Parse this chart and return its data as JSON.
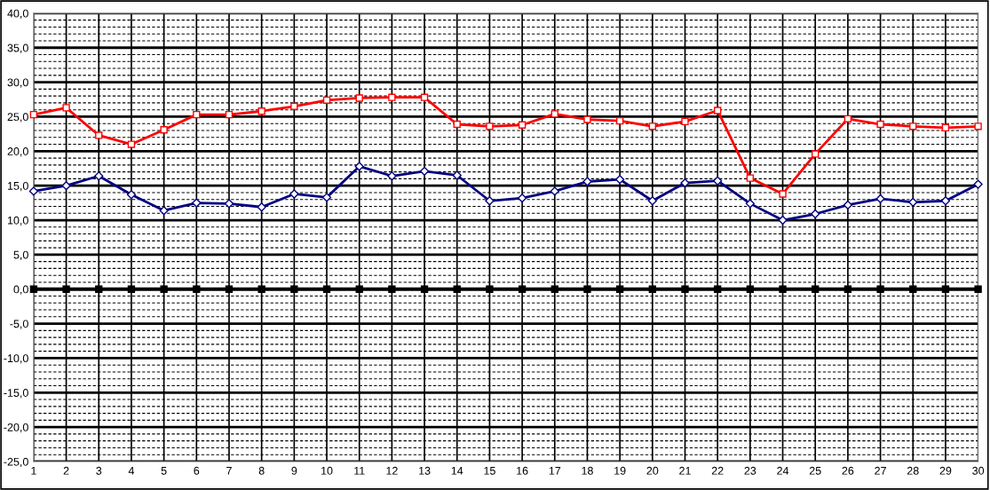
{
  "chart_data": {
    "type": "line",
    "categories": [
      "1",
      "2",
      "3",
      "4",
      "5",
      "6",
      "7",
      "8",
      "9",
      "10",
      "11",
      "12",
      "13",
      "14",
      "15",
      "16",
      "17",
      "18",
      "19",
      "20",
      "21",
      "22",
      "23",
      "24",
      "25",
      "26",
      "27",
      "28",
      "29",
      "30"
    ],
    "series": [
      {
        "color": "#ff0000",
        "marker": "square",
        "values": [
          25.3,
          26.3,
          22.3,
          21.0,
          23.1,
          25.3,
          25.3,
          25.8,
          26.5,
          27.4,
          27.7,
          27.8,
          27.8,
          23.9,
          23.6,
          23.8,
          25.4,
          24.6,
          24.4,
          23.6,
          24.3,
          25.9,
          16.1,
          13.8,
          19.6,
          24.7,
          23.9,
          23.6,
          23.4,
          23.6
        ]
      },
      {
        "color": "#000080",
        "marker": "diamond",
        "values": [
          14.2,
          15.0,
          16.4,
          13.7,
          11.4,
          12.5,
          12.4,
          11.9,
          13.8,
          13.3,
          17.8,
          16.4,
          17.1,
          16.5,
          12.8,
          13.2,
          14.2,
          15.6,
          15.9,
          12.8,
          15.4,
          15.7,
          12.4,
          10.0,
          10.9,
          12.2,
          13.1,
          12.6,
          12.8,
          15.2
        ]
      },
      {
        "color": "#000000",
        "marker": "square",
        "values": [
          0,
          0,
          0,
          0,
          0,
          0,
          0,
          0,
          0,
          0,
          0,
          0,
          0,
          0,
          0,
          0,
          0,
          0,
          0,
          0,
          0,
          0,
          0,
          0,
          0,
          0,
          0,
          0,
          0,
          0
        ]
      }
    ],
    "ylim": [
      -25,
      40
    ],
    "yticks": [
      {
        "value": -25,
        "label": "-25,0"
      },
      {
        "value": -20,
        "label": "-20,0"
      },
      {
        "value": -15,
        "label": "-15,0"
      },
      {
        "value": -10,
        "label": "-10,0"
      },
      {
        "value": -5,
        "label": "-5,0"
      },
      {
        "value": 0,
        "label": "0,0"
      },
      {
        "value": 5,
        "label": "5,0"
      },
      {
        "value": 10,
        "label": "10,0"
      },
      {
        "value": 15,
        "label": "15,0"
      },
      {
        "value": 20,
        "label": "20,0"
      },
      {
        "value": 25,
        "label": "25,0"
      },
      {
        "value": 30,
        "label": "30,0"
      },
      {
        "value": 35,
        "label": "35,0"
      },
      {
        "value": 40,
        "label": "40,0"
      }
    ],
    "grid": true,
    "legend": false,
    "line_style": "solid"
  }
}
